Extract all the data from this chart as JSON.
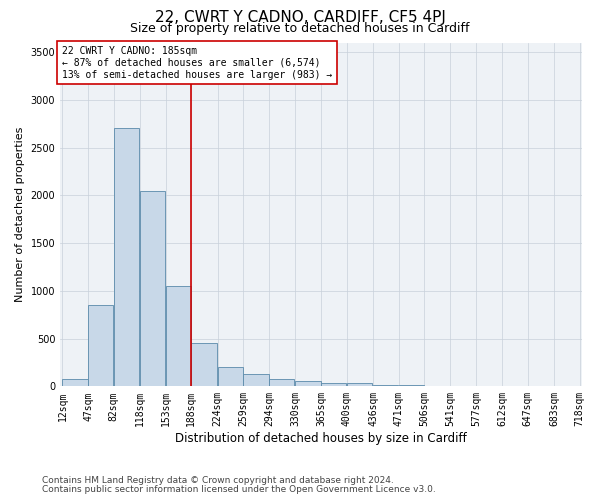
{
  "title": "22, CWRT Y CADNO, CARDIFF, CF5 4PJ",
  "subtitle": "Size of property relative to detached houses in Cardiff",
  "xlabel": "Distribution of detached houses by size in Cardiff",
  "ylabel": "Number of detached properties",
  "footnote1": "Contains HM Land Registry data © Crown copyright and database right 2024.",
  "footnote2": "Contains public sector information licensed under the Open Government Licence v3.0.",
  "annotation_line1": "22 CWRT Y CADNO: 185sqm",
  "annotation_line2": "← 87% of detached houses are smaller (6,574)",
  "annotation_line3": "13% of semi-detached houses are larger (983) →",
  "bar_color": "#c8d8e8",
  "bar_edge_color": "#5a8aaa",
  "marker_color": "#cc0000",
  "background_color": "#eef2f6",
  "annotation_box_color": "#ffffff",
  "annotation_box_edge": "#cc0000",
  "bins": [
    12,
    47,
    82,
    118,
    153,
    188,
    224,
    259,
    294,
    330,
    365,
    400,
    436,
    471,
    506,
    541,
    577,
    612,
    647,
    683,
    718
  ],
  "counts": [
    75,
    850,
    2700,
    2050,
    1050,
    450,
    200,
    130,
    80,
    60,
    35,
    30,
    15,
    10,
    5,
    3,
    2,
    1,
    1,
    1
  ],
  "ylim": [
    0,
    3600
  ],
  "yticks": [
    0,
    500,
    1000,
    1500,
    2000,
    2500,
    3000,
    3500
  ],
  "title_fontsize": 11,
  "subtitle_fontsize": 9,
  "xlabel_fontsize": 8.5,
  "ylabel_fontsize": 8,
  "tick_fontsize": 7,
  "annotation_fontsize": 7,
  "footnote_fontsize": 6.5
}
